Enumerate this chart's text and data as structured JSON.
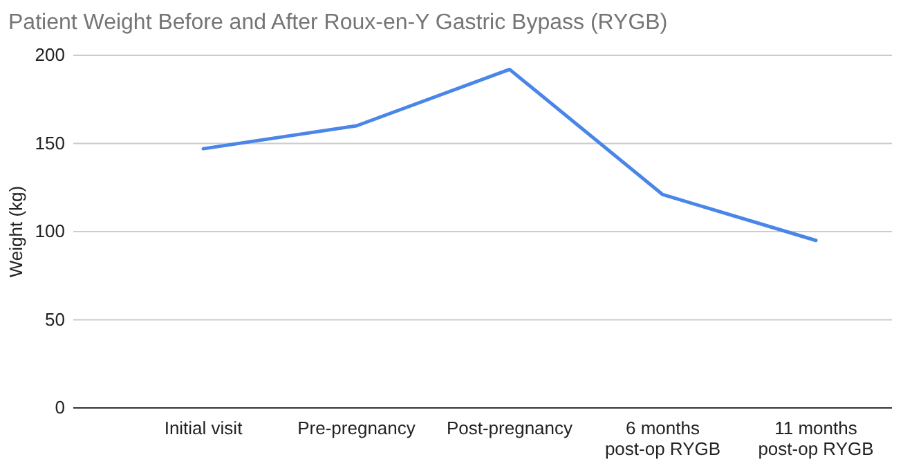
{
  "chart_data": {
    "type": "line",
    "title": "Patient Weight Before and After Roux-en-Y Gastric Bypass (RYGB)",
    "ylabel": "Weight (kg)",
    "categories": [
      "Initial visit",
      "Pre-pregnancy",
      "Post-pregnancy",
      "6 months post-op RYGB",
      "11 months post-op RYGB"
    ],
    "series": [
      {
        "color": "#4a86e8",
        "values": [
          147,
          160,
          192,
          121,
          95
        ]
      }
    ],
    "ylim": [
      0,
      200
    ],
    "yticks": [
      0,
      50,
      100,
      150,
      200
    ],
    "grid": "y",
    "marker": "none",
    "line_style": "solid"
  }
}
